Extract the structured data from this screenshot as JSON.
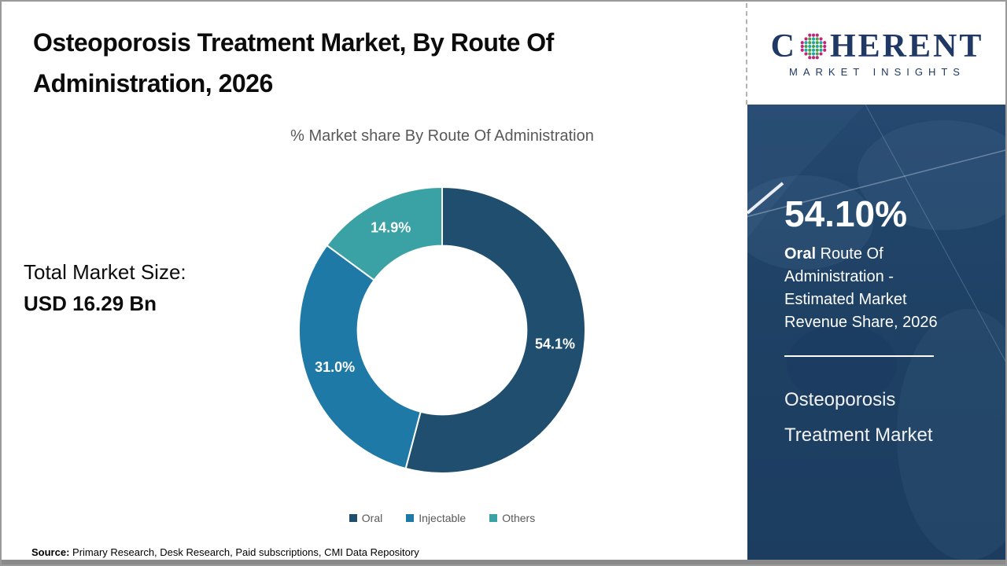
{
  "header": {
    "title": "Osteoporosis Treatment Market, By Route Of Administration, 2026"
  },
  "logo": {
    "brand_prefix": "C",
    "brand_suffix": "HERENT",
    "tagline": "MARKET INSIGHTS"
  },
  "left_panel": {
    "total_label": "Total Market Size:",
    "total_value": "USD 16.29 Bn"
  },
  "chart_data": {
    "type": "pie",
    "subtype": "donut",
    "title": "% Market share By Route Of Administration",
    "categories": [
      "Oral",
      "Injectable",
      "Others"
    ],
    "values": [
      54.1,
      31.0,
      14.9
    ],
    "value_labels": [
      "54.1%",
      "31.0%",
      "14.9%"
    ],
    "colors": [
      "#1F4E6F",
      "#1F79A7",
      "#3AA1A4"
    ],
    "start_angle_deg": 0,
    "direction": "clockwise",
    "inner_radius_ratio": 0.59,
    "legend_position": "bottom",
    "label_color": "#ffffff"
  },
  "sidebar": {
    "stat_value": "54.10%",
    "stat_desc_bold": "Oral",
    "stat_desc_rest": " Route Of Administration - Estimated Market Revenue Share, 2026",
    "market_name": "Osteoporosis Treatment Market",
    "bg_color": "#1E4164"
  },
  "footer": {
    "source_label": "Source:",
    "source_text": " Primary Research, Desk Research, Paid subscriptions, CMI Data Repository"
  }
}
